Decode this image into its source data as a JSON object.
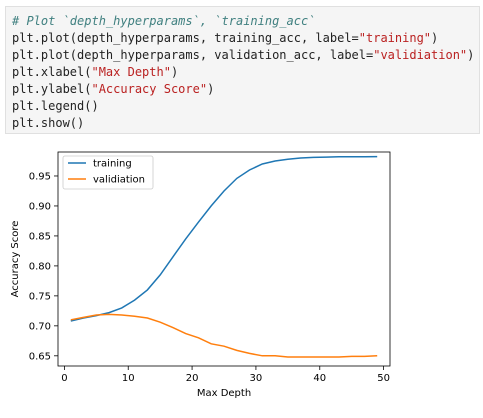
{
  "code_cell": {
    "lines": [
      [
        {
          "t": "# Plot `depth_hyperparams`, `training_acc`",
          "c": "cm-comment"
        }
      ],
      [
        {
          "t": "plt.plot(depth_hyperparams, training_acc, label=",
          "c": "cm-kw"
        },
        {
          "t": "\"training\"",
          "c": "cm-string"
        },
        {
          "t": ")",
          "c": "cm-kw"
        }
      ],
      [
        {
          "t": "plt.plot(depth_hyperparams, validation_acc, label=",
          "c": "cm-kw"
        },
        {
          "t": "\"validiation\"",
          "c": "cm-string"
        },
        {
          "t": ")",
          "c": "cm-kw"
        }
      ],
      [
        {
          "t": "plt.xlabel(",
          "c": "cm-kw"
        },
        {
          "t": "\"Max Depth\"",
          "c": "cm-string"
        },
        {
          "t": ")",
          "c": "cm-kw"
        }
      ],
      [
        {
          "t": "plt.ylabel(",
          "c": "cm-kw"
        },
        {
          "t": "\"Accuracy Score\"",
          "c": "cm-string"
        },
        {
          "t": ")",
          "c": "cm-kw"
        }
      ],
      [
        {
          "t": "plt.legend()",
          "c": "cm-kw"
        }
      ],
      [
        {
          "t": "plt.show()",
          "c": "cm-kw"
        }
      ]
    ]
  },
  "chart_data": {
    "type": "line",
    "title": "",
    "xlabel": "Max Depth",
    "ylabel": "Accuracy Score",
    "xlim": [
      -1,
      51
    ],
    "ylim": [
      0.633,
      0.99
    ],
    "xticks": [
      0,
      10,
      20,
      30,
      40,
      50
    ],
    "yticks": [
      0.65,
      0.7,
      0.75,
      0.8,
      0.85,
      0.9,
      0.95
    ],
    "ytick_labels": [
      "0.65",
      "0.70",
      "0.75",
      "0.80",
      "0.85",
      "0.90",
      "0.95"
    ],
    "grid": false,
    "legend_position": "top-left",
    "x": [
      1,
      3,
      5,
      7,
      9,
      11,
      13,
      15,
      17,
      19,
      21,
      23,
      25,
      27,
      29,
      31,
      33,
      35,
      37,
      39,
      41,
      43,
      45,
      47,
      49
    ],
    "series": [
      {
        "name": "training",
        "color": "#1f77b4",
        "values": [
          0.708,
          0.713,
          0.717,
          0.722,
          0.73,
          0.743,
          0.76,
          0.785,
          0.815,
          0.845,
          0.873,
          0.9,
          0.925,
          0.946,
          0.96,
          0.97,
          0.975,
          0.978,
          0.98,
          0.981,
          0.9815,
          0.982,
          0.982,
          0.9822,
          0.9823
        ]
      },
      {
        "name": "validiation",
        "color": "#ff7f0e",
        "values": [
          0.71,
          0.714,
          0.718,
          0.719,
          0.718,
          0.716,
          0.713,
          0.706,
          0.697,
          0.687,
          0.68,
          0.67,
          0.666,
          0.659,
          0.654,
          0.65,
          0.65,
          0.648,
          0.648,
          0.648,
          0.648,
          0.648,
          0.649,
          0.649,
          0.65
        ]
      }
    ]
  }
}
